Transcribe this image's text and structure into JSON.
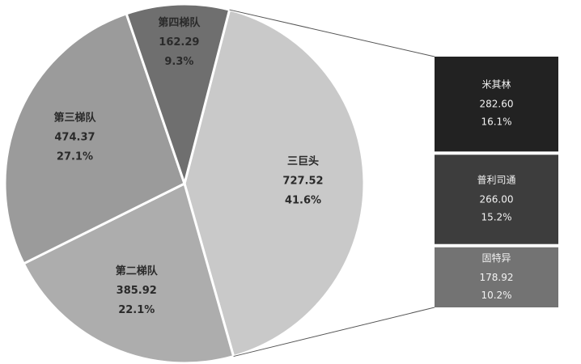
{
  "chart_data": {
    "type": "pie-of-bar",
    "pie": [
      {
        "label": "三巨头",
        "value": "727.52",
        "percent": "41.6%",
        "v": 727.52,
        "color": "#c9c9c9"
      },
      {
        "label": "第二梯队",
        "value": "385.92",
        "percent": "22.1%",
        "v": 385.92,
        "color": "#adadad"
      },
      {
        "label": "第三梯队",
        "value": "474.37",
        "percent": "27.1%",
        "v": 474.37,
        "color": "#9b9b9b"
      },
      {
        "label": "第四梯队",
        "value": "162.29",
        "percent": "9.3%",
        "v": 162.29,
        "color": "#6f6f6f"
      }
    ],
    "bar": [
      {
        "label": "米其林",
        "value": "282.60",
        "percent": "16.1%",
        "v": 282.6,
        "color": "#222222"
      },
      {
        "label": "普利司通",
        "value": "266.00",
        "percent": "15.2%",
        "v": 266.0,
        "color": "#3d3d3d"
      },
      {
        "label": "固特异",
        "value": "178.92",
        "percent": "10.2%",
        "v": 178.92,
        "color": "#737373"
      }
    ],
    "expanded_slice": "三巨头"
  }
}
